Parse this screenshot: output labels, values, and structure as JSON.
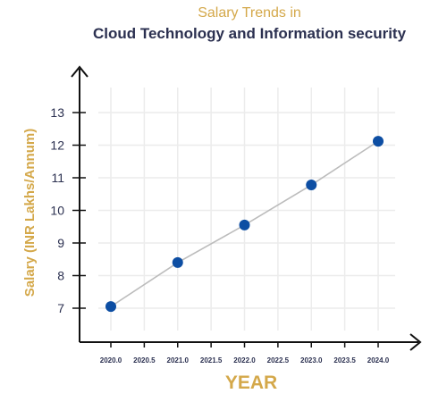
{
  "header": {
    "title": "Salary Trends in",
    "subtitle": "Cloud Technology and Information security"
  },
  "colors": {
    "accent": "#d4a84a",
    "title_dark": "#2b3050",
    "point": "#0d4ea3",
    "line": "#bcbcbc",
    "grid": "#ececec",
    "axis": "#111111"
  },
  "chart_data": {
    "type": "line",
    "title": "Salary Trends in Cloud Technology and Information security",
    "xlabel": "YEAR",
    "ylabel": "Salary (INR Lakhs/Annum)",
    "x": [
      2020.0,
      2021.0,
      2022.0,
      2023.0,
      2024.0
    ],
    "series": [
      {
        "values": [
          7.05,
          8.4,
          9.55,
          10.78,
          12.12
        ]
      }
    ],
    "xticks": [
      "2020.0",
      "2020.5",
      "2021.0",
      "2021.5",
      "2022.0",
      "2022.5",
      "2023.0",
      "2023.5",
      "2024.0"
    ],
    "yticks": [
      "7",
      "8",
      "9",
      "10",
      "11",
      "12",
      "13"
    ],
    "xlim": [
      2020.0,
      2024.0
    ],
    "ylim": [
      7,
      13
    ],
    "grid": true,
    "legend": "none"
  }
}
